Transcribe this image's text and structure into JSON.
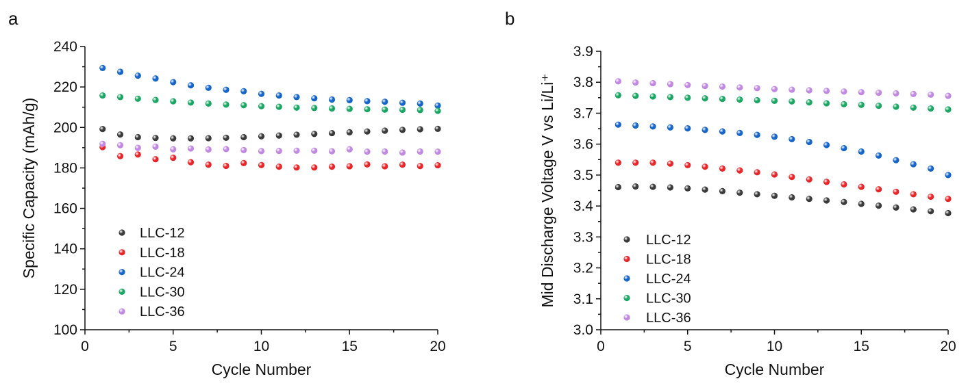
{
  "chart_data": [
    {
      "type": "scatter",
      "panel_label": "a",
      "title": "",
      "xlabel": "Cycle Number",
      "ylabel": "Specific Capacity (mAh/g)",
      "xlim": [
        0,
        20
      ],
      "ylim": [
        100,
        240
      ],
      "xticks": [
        0,
        5,
        10,
        15,
        20
      ],
      "yticks": [
        100,
        120,
        140,
        160,
        180,
        200,
        220,
        240
      ],
      "legend_position": "bottom-left",
      "x": [
        1,
        2,
        3,
        4,
        5,
        6,
        7,
        8,
        9,
        10,
        11,
        12,
        13,
        14,
        15,
        16,
        17,
        18,
        19,
        20
      ],
      "series": [
        {
          "name": "LLC-12",
          "color": "#3a3a3a",
          "values": [
            199.2,
            196.5,
            195.2,
            194.8,
            194.6,
            194.6,
            194.7,
            194.9,
            195.2,
            195.6,
            196.0,
            196.4,
            196.8,
            197.2,
            197.6,
            198.0,
            198.4,
            198.8,
            199.1,
            199.3
          ]
        },
        {
          "name": "LLC-18",
          "color": "#e8262a",
          "values": [
            190.3,
            185.8,
            186.6,
            184.3,
            185.0,
            182.8,
            181.6,
            181.0,
            182.4,
            181.4,
            180.6,
            180.2,
            180.2,
            180.6,
            180.8,
            181.7,
            180.8,
            181.6,
            180.9,
            181.3
          ]
        },
        {
          "name": "LLC-24",
          "color": "#1565c9",
          "values": [
            229.4,
            227.5,
            225.6,
            224.2,
            222.4,
            220.8,
            219.6,
            218.6,
            217.9,
            216.6,
            215.8,
            215.0,
            214.4,
            213.8,
            213.5,
            213.0,
            212.7,
            212.2,
            211.8,
            210.8
          ]
        },
        {
          "name": "LLC-30",
          "color": "#1aa763",
          "values": [
            215.8,
            215.0,
            214.2,
            213.6,
            212.9,
            212.3,
            211.8,
            211.3,
            211.0,
            210.5,
            210.2,
            209.8,
            209.6,
            209.4,
            209.2,
            209.0,
            208.8,
            208.7,
            208.6,
            208.2
          ]
        },
        {
          "name": "LLC-36",
          "color": "#c088e0",
          "values": [
            191.9,
            191.2,
            189.9,
            190.5,
            189.2,
            189.6,
            189.1,
            189.3,
            188.8,
            188.3,
            188.4,
            188.5,
            188.5,
            188.2,
            189.2,
            188.0,
            188.1,
            187.6,
            188.1,
            188.0
          ]
        }
      ]
    },
    {
      "type": "scatter",
      "panel_label": "b",
      "title": "",
      "xlabel": "Cycle Number",
      "ylabel": "Mid Discharge Voltage  V vs Li/Li⁺",
      "xlim": [
        0,
        20
      ],
      "ylim": [
        3.0,
        3.9
      ],
      "xticks": [
        0,
        5,
        10,
        15,
        20
      ],
      "yticks": [
        3.0,
        3.1,
        3.2,
        3.3,
        3.4,
        3.5,
        3.6,
        3.7,
        3.8,
        3.9
      ],
      "legend_position": "bottom-left",
      "x": [
        1,
        2,
        3,
        4,
        5,
        6,
        7,
        8,
        9,
        10,
        11,
        12,
        13,
        14,
        15,
        16,
        17,
        18,
        19,
        20
      ],
      "series": [
        {
          "name": "LLC-12",
          "color": "#3a3a3a",
          "values": [
            3.461,
            3.463,
            3.462,
            3.46,
            3.457,
            3.453,
            3.448,
            3.443,
            3.438,
            3.433,
            3.428,
            3.423,
            3.418,
            3.413,
            3.407,
            3.401,
            3.395,
            3.389,
            3.383,
            3.377
          ]
        },
        {
          "name": "LLC-18",
          "color": "#e8262a",
          "values": [
            3.54,
            3.54,
            3.54,
            3.537,
            3.532,
            3.527,
            3.521,
            3.515,
            3.509,
            3.502,
            3.494,
            3.486,
            3.478,
            3.47,
            3.462,
            3.454,
            3.446,
            3.438,
            3.43,
            3.423
          ]
        },
        {
          "name": "LLC-24",
          "color": "#1565c9",
          "values": [
            3.663,
            3.66,
            3.657,
            3.654,
            3.651,
            3.646,
            3.641,
            3.636,
            3.63,
            3.624,
            3.616,
            3.607,
            3.597,
            3.587,
            3.576,
            3.563,
            3.548,
            3.535,
            3.521,
            3.5
          ]
        },
        {
          "name": "LLC-30",
          "color": "#1aa763",
          "values": [
            3.758,
            3.756,
            3.754,
            3.752,
            3.75,
            3.748,
            3.746,
            3.744,
            3.742,
            3.74,
            3.738,
            3.735,
            3.732,
            3.729,
            3.727,
            3.724,
            3.721,
            3.718,
            3.715,
            3.712
          ]
        },
        {
          "name": "LLC-36",
          "color": "#c088e0",
          "values": [
            3.803,
            3.799,
            3.797,
            3.794,
            3.791,
            3.788,
            3.786,
            3.783,
            3.781,
            3.778,
            3.776,
            3.774,
            3.772,
            3.77,
            3.768,
            3.766,
            3.764,
            3.762,
            3.76,
            3.756
          ]
        }
      ]
    }
  ]
}
